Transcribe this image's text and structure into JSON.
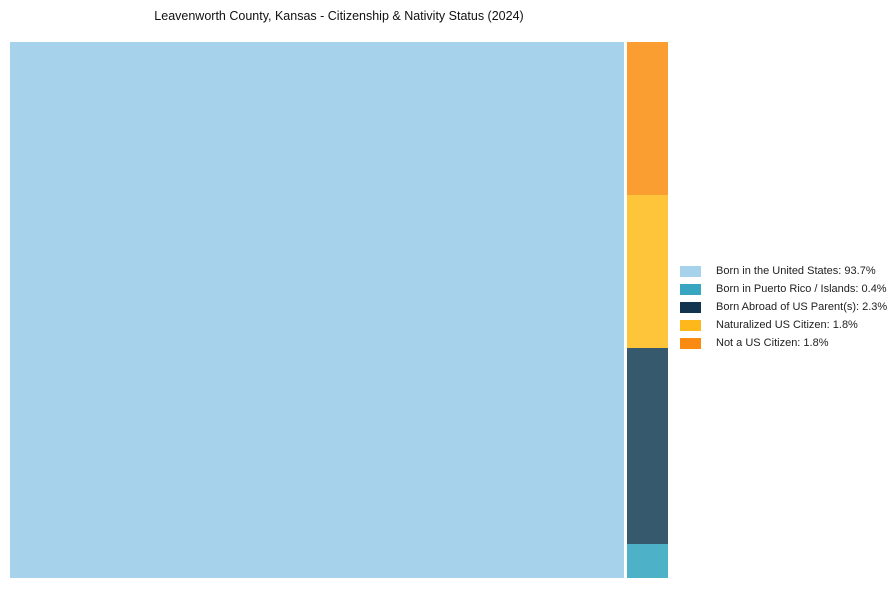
{
  "title": "Leavenworth County, Kansas - Citizenship & Nativity Status (2024)",
  "chart_data": {
    "type": "mosaic",
    "title": "Leavenworth County, Kansas - Citizenship & Nativity Status (2024)",
    "categories": [
      "Born in the United States",
      "Born in Puerto Rico / Islands",
      "Born Abroad of US Parent(s)",
      "Naturalized US Citizen",
      "Not a US Citizen"
    ],
    "values": [
      93.7,
      0.4,
      2.3,
      1.8,
      1.8
    ],
    "unit": "%",
    "chart_colors": [
      "#A6D3EB",
      "#4DB2C8",
      "#36596D",
      "#FEC53B",
      "#FA9E32"
    ],
    "legend_colors": [
      "#A6D3EB",
      "#38A6C0",
      "#12344F",
      "#FFB81C",
      "#F98A12"
    ],
    "layout": {
      "main_category_index": 0,
      "column_top_to_bottom_indices": [
        4,
        3,
        2,
        1
      ],
      "legend_position": "right",
      "grid": false,
      "background": "#ffffff"
    }
  },
  "legend": {
    "items": [
      {
        "label": "Born in the United States: 93.7%",
        "color": "#A6D3EB"
      },
      {
        "label": "Born in Puerto Rico / Islands: 0.4%",
        "color": "#38A6C0"
      },
      {
        "label": "Born Abroad of US Parent(s): 2.3%",
        "color": "#12344F"
      },
      {
        "label": "Naturalized US Citizen: 1.8%",
        "color": "#FFB81C"
      },
      {
        "label": "Not a US Citizen: 1.8%",
        "color": "#F98A12"
      }
    ]
  }
}
